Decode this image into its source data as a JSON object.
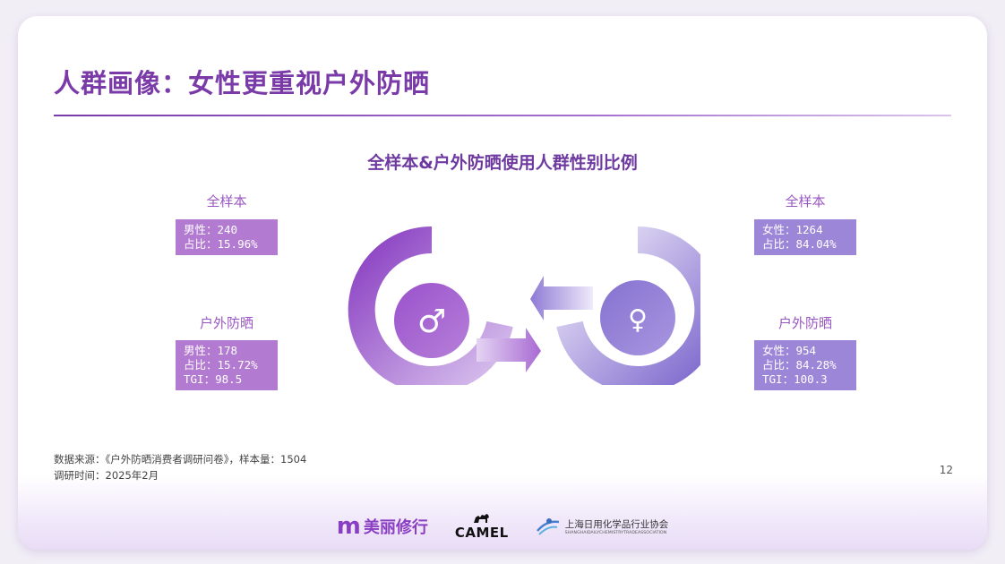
{
  "page": {
    "title": "人群画像：女性更重视户外防晒",
    "chart_title": "全样本&户外防晒使用人群性别比例",
    "page_number": "12"
  },
  "chart_data": {
    "type": "table",
    "title": "全样本&户外防晒使用人群性别比例",
    "left": {
      "symbol": "♂",
      "full_sample": {
        "label": "全样本",
        "lines": [
          "男性：240",
          "占比：15.96%"
        ]
      },
      "outdoor": {
        "label": "户外防晒",
        "lines": [
          "男性：178",
          "占比：15.72%",
          "TGI：98.5"
        ]
      }
    },
    "right": {
      "symbol": "♀",
      "full_sample": {
        "label": "全样本",
        "lines": [
          "女性：1264",
          "占比：84.04%"
        ]
      },
      "outdoor": {
        "label": "户外防晒",
        "lines": [
          "女性：954",
          "占比：84.28%",
          "TGI：100.3"
        ]
      }
    },
    "colors": {
      "male": "#b27ad0",
      "female": "#9c86d8",
      "title": "#7a3aa8"
    }
  },
  "footer": {
    "source": "数据来源：《户外防晒消费者调研问卷》，样本量：1504",
    "date": "调研时间：2025年2月"
  },
  "logos": {
    "mlxx_letter": "m",
    "mlxx_text": "美丽修行",
    "camel_text": "CAMEL",
    "sh_cn": "上海日用化学品行业协会",
    "sh_en": "SHANGHAIDAILYCHEMISTRYTRADEASSOCIATION"
  }
}
